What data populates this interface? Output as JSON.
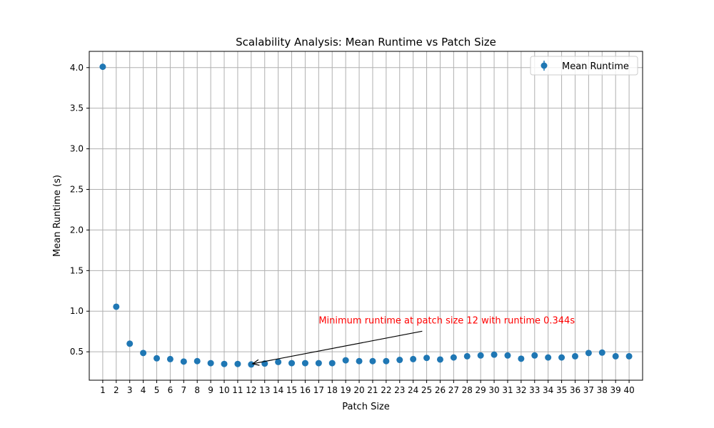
{
  "chart_data": {
    "type": "scatter",
    "title": "Scalability Analysis: Mean Runtime vs Patch Size",
    "xlabel": "Patch Size",
    "ylabel": "Mean Runtime (s)",
    "x_ticks": [
      1,
      2,
      3,
      4,
      5,
      6,
      7,
      8,
      9,
      10,
      11,
      12,
      13,
      14,
      15,
      16,
      17,
      18,
      19,
      20,
      21,
      22,
      23,
      24,
      25,
      26,
      27,
      28,
      29,
      30,
      31,
      32,
      33,
      34,
      35,
      36,
      37,
      38,
      39,
      40
    ],
    "y_ticks": [
      0.5,
      1.0,
      1.5,
      2.0,
      2.5,
      3.0,
      3.5,
      4.0
    ],
    "y_tick_labels": [
      "0.5",
      "1.0",
      "1.5",
      "2.0",
      "2.5",
      "3.0",
      "3.5",
      "4.0"
    ],
    "xlim": [
      0.0,
      41.0
    ],
    "ylim": [
      0.15,
      4.2
    ],
    "grid": true,
    "legend": {
      "location": "top-right",
      "entries": [
        "Mean Runtime"
      ]
    },
    "series": [
      {
        "name": "Mean Runtime",
        "color": "#1f77b4",
        "x": [
          1,
          2,
          3,
          4,
          5,
          6,
          7,
          8,
          9,
          10,
          11,
          12,
          13,
          14,
          15,
          16,
          17,
          18,
          19,
          20,
          21,
          22,
          23,
          24,
          25,
          26,
          27,
          28,
          29,
          30,
          31,
          32,
          33,
          34,
          35,
          36,
          37,
          38,
          39,
          40
        ],
        "y": [
          4.01,
          1.055,
          0.6,
          0.485,
          0.42,
          0.41,
          0.38,
          0.385,
          0.36,
          0.35,
          0.35,
          0.344,
          0.355,
          0.375,
          0.36,
          0.36,
          0.36,
          0.36,
          0.395,
          0.385,
          0.385,
          0.385,
          0.4,
          0.41,
          0.425,
          0.405,
          0.43,
          0.445,
          0.455,
          0.465,
          0.455,
          0.415,
          0.455,
          0.43,
          0.43,
          0.445,
          0.485,
          0.49,
          0.445,
          0.445
        ]
      }
    ],
    "annotation": {
      "text": "Minimum runtime at patch size 12 with runtime 0.344s",
      "color": "#ff0000",
      "point": {
        "x": 12,
        "y": 0.344
      },
      "text_anchor_data": {
        "x": 17,
        "y": 0.85
      }
    }
  }
}
